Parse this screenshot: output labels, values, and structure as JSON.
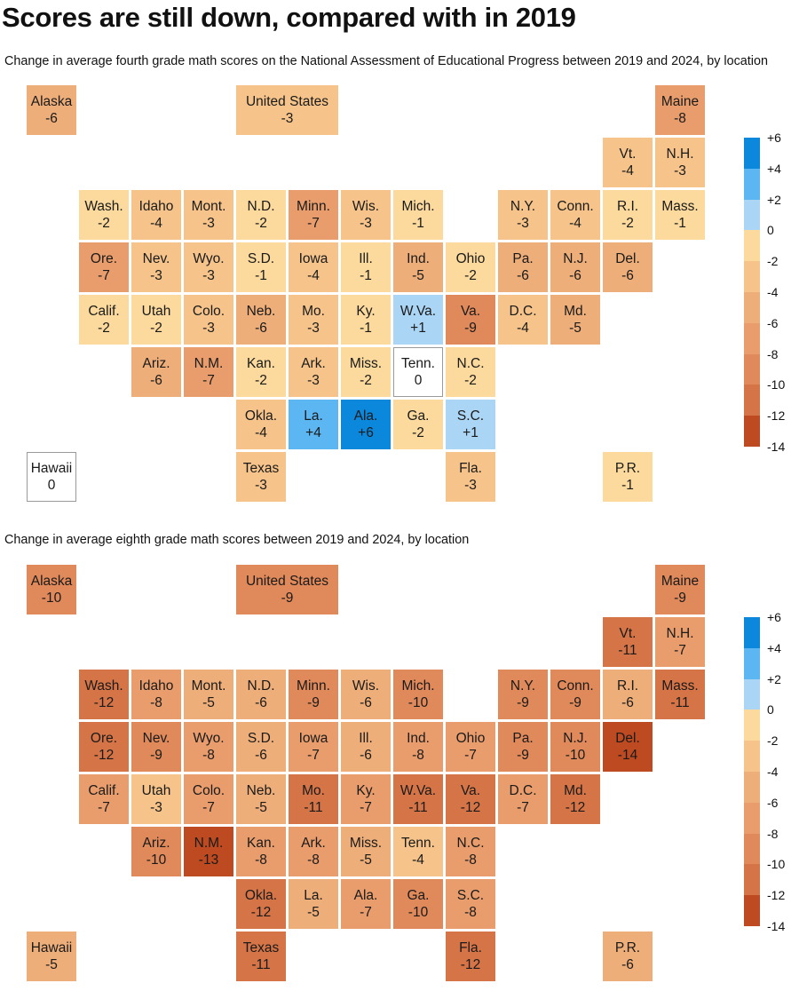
{
  "title": "Scores are still down, compared with in 2019",
  "maps": [
    {
      "subtitle": "Change in average fourth grade math scores on the National Assessment of Educational Progress between 2019 and 2024, by location",
      "tiles": [
        {
          "label": "Alaska",
          "value": -6
        },
        {
          "label": "United States",
          "value": -3
        },
        {
          "label": "Maine",
          "value": -8
        },
        {
          "label": "Vt.",
          "value": -4
        },
        {
          "label": "N.H.",
          "value": -3
        },
        {
          "label": "Wash.",
          "value": -2
        },
        {
          "label": "Idaho",
          "value": -4
        },
        {
          "label": "Mont.",
          "value": -3
        },
        {
          "label": "N.D.",
          "value": -2
        },
        {
          "label": "Minn.",
          "value": -7
        },
        {
          "label": "Wis.",
          "value": -3
        },
        {
          "label": "Mich.",
          "value": -1
        },
        {
          "label": "N.Y.",
          "value": -3
        },
        {
          "label": "Conn.",
          "value": -4
        },
        {
          "label": "R.I.",
          "value": -2
        },
        {
          "label": "Mass.",
          "value": -1
        },
        {
          "label": "Ore.",
          "value": -7
        },
        {
          "label": "Nev.",
          "value": -3
        },
        {
          "label": "Wyo.",
          "value": -3
        },
        {
          "label": "S.D.",
          "value": -1
        },
        {
          "label": "Iowa",
          "value": -4
        },
        {
          "label": "Ill.",
          "value": -1
        },
        {
          "label": "Ind.",
          "value": -5
        },
        {
          "label": "Ohio",
          "value": -2
        },
        {
          "label": "Pa.",
          "value": -6
        },
        {
          "label": "N.J.",
          "value": -6
        },
        {
          "label": "Del.",
          "value": -6
        },
        {
          "label": "Calif.",
          "value": -2
        },
        {
          "label": "Utah",
          "value": -2
        },
        {
          "label": "Colo.",
          "value": -3
        },
        {
          "label": "Neb.",
          "value": -6
        },
        {
          "label": "Mo.",
          "value": -3
        },
        {
          "label": "Ky.",
          "value": -1
        },
        {
          "label": "W.Va.",
          "value": 1
        },
        {
          "label": "Va.",
          "value": -9
        },
        {
          "label": "D.C.",
          "value": -4
        },
        {
          "label": "Md.",
          "value": -5
        },
        {
          "label": "Ariz.",
          "value": -6
        },
        {
          "label": "N.M.",
          "value": -7
        },
        {
          "label": "Kan.",
          "value": -2
        },
        {
          "label": "Ark.",
          "value": -3
        },
        {
          "label": "Miss.",
          "value": -2
        },
        {
          "label": "Tenn.",
          "value": 0
        },
        {
          "label": "N.C.",
          "value": -2
        },
        {
          "label": "Okla.",
          "value": -4
        },
        {
          "label": "La.",
          "value": 4
        },
        {
          "label": "Ala.",
          "value": 6
        },
        {
          "label": "Ga.",
          "value": -2
        },
        {
          "label": "S.C.",
          "value": 1
        },
        {
          "label": "Hawaii",
          "value": 0
        },
        {
          "label": "Texas",
          "value": -3
        },
        {
          "label": "Fla.",
          "value": -3
        },
        {
          "label": "P.R.",
          "value": -1
        }
      ]
    },
    {
      "subtitle": "Change in average eighth grade math scores between 2019 and 2024, by location",
      "tiles": [
        {
          "label": "Alaska",
          "value": -10
        },
        {
          "label": "United States",
          "value": -9
        },
        {
          "label": "Maine",
          "value": -9
        },
        {
          "label": "Vt.",
          "value": -11
        },
        {
          "label": "N.H.",
          "value": -7
        },
        {
          "label": "Wash.",
          "value": -12
        },
        {
          "label": "Idaho",
          "value": -8
        },
        {
          "label": "Mont.",
          "value": -5
        },
        {
          "label": "N.D.",
          "value": -6
        },
        {
          "label": "Minn.",
          "value": -9
        },
        {
          "label": "Wis.",
          "value": -6
        },
        {
          "label": "Mich.",
          "value": -10
        },
        {
          "label": "N.Y.",
          "value": -9
        },
        {
          "label": "Conn.",
          "value": -9
        },
        {
          "label": "R.I.",
          "value": -6
        },
        {
          "label": "Mass.",
          "value": -11
        },
        {
          "label": "Ore.",
          "value": -12
        },
        {
          "label": "Nev.",
          "value": -9
        },
        {
          "label": "Wyo.",
          "value": -8
        },
        {
          "label": "S.D.",
          "value": -6
        },
        {
          "label": "Iowa",
          "value": -7
        },
        {
          "label": "Ill.",
          "value": -6
        },
        {
          "label": "Ind.",
          "value": -8
        },
        {
          "label": "Ohio",
          "value": -7
        },
        {
          "label": "Pa.",
          "value": -9
        },
        {
          "label": "N.J.",
          "value": -10
        },
        {
          "label": "Del.",
          "value": -14
        },
        {
          "label": "Calif.",
          "value": -7
        },
        {
          "label": "Utah",
          "value": -3
        },
        {
          "label": "Colo.",
          "value": -7
        },
        {
          "label": "Neb.",
          "value": -5
        },
        {
          "label": "Mo.",
          "value": -11
        },
        {
          "label": "Ky.",
          "value": -7
        },
        {
          "label": "W.Va.",
          "value": -11
        },
        {
          "label": "Va.",
          "value": -12
        },
        {
          "label": "D.C.",
          "value": -7
        },
        {
          "label": "Md.",
          "value": -12
        },
        {
          "label": "Ariz.",
          "value": -10
        },
        {
          "label": "N.M.",
          "value": -13
        },
        {
          "label": "Kan.",
          "value": -8
        },
        {
          "label": "Ark.",
          "value": -8
        },
        {
          "label": "Miss.",
          "value": -5
        },
        {
          "label": "Tenn.",
          "value": -4
        },
        {
          "label": "N.C.",
          "value": -8
        },
        {
          "label": "Okla.",
          "value": -12
        },
        {
          "label": "La.",
          "value": -5
        },
        {
          "label": "Ala.",
          "value": -7
        },
        {
          "label": "Ga.",
          "value": -10
        },
        {
          "label": "S.C.",
          "value": -8
        },
        {
          "label": "Hawaii",
          "value": -5
        },
        {
          "label": "Texas",
          "value": -11
        },
        {
          "label": "Fla.",
          "value": -12
        },
        {
          "label": "P.R.",
          "value": -6
        }
      ]
    }
  ],
  "legend": {
    "ticks": [
      "+6",
      "+4",
      "+2",
      "0",
      "-2",
      "-4",
      "-6",
      "-8",
      "-10",
      "-12",
      "-14"
    ],
    "colors": [
      "#0b87dc",
      "#5bb6f2",
      "#abd5f5",
      "#fcd99c",
      "#f6c48a",
      "#eeae79",
      "#e99d6c",
      "#e0895a",
      "#d57447",
      "#c95f34",
      "#bd4a21"
    ]
  },
  "chart_data": [
    {
      "type": "heatmap",
      "title": "Scores are still down, compared with in 2019",
      "subtitle": "Change in average fourth grade math scores on the National Assessment of Educational Progress between 2019 and 2024, by location",
      "categories": [
        "Alaska",
        "United States",
        "Maine",
        "Vt.",
        "N.H.",
        "Wash.",
        "Idaho",
        "Mont.",
        "N.D.",
        "Minn.",
        "Wis.",
        "Mich.",
        "N.Y.",
        "Conn.",
        "R.I.",
        "Mass.",
        "Ore.",
        "Nev.",
        "Wyo.",
        "S.D.",
        "Iowa",
        "Ill.",
        "Ind.",
        "Ohio",
        "Pa.",
        "N.J.",
        "Del.",
        "Calif.",
        "Utah",
        "Colo.",
        "Neb.",
        "Mo.",
        "Ky.",
        "W.Va.",
        "Va.",
        "D.C.",
        "Md.",
        "Ariz.",
        "N.M.",
        "Kan.",
        "Ark.",
        "Miss.",
        "Tenn.",
        "N.C.",
        "Okla.",
        "La.",
        "Ala.",
        "Ga.",
        "S.C.",
        "Hawaii",
        "Texas",
        "Fla.",
        "P.R."
      ],
      "values": [
        -6,
        -3,
        -8,
        -4,
        -3,
        -2,
        -4,
        -3,
        -2,
        -7,
        -3,
        -1,
        -3,
        -4,
        -2,
        -1,
        -7,
        -3,
        -3,
        -1,
        -4,
        -1,
        -5,
        -2,
        -6,
        -6,
        -6,
        -2,
        -2,
        -3,
        -6,
        -3,
        -1,
        1,
        -9,
        -4,
        -5,
        -6,
        -7,
        -2,
        -3,
        -2,
        0,
        -2,
        -4,
        4,
        6,
        -2,
        1,
        0,
        -3,
        -3,
        -1
      ],
      "color_scale_range": [
        -14,
        6
      ],
      "legend": "right"
    },
    {
      "type": "heatmap",
      "subtitle": "Change in average eighth grade math scores between 2019 and 2024, by location",
      "categories": [
        "Alaska",
        "United States",
        "Maine",
        "Vt.",
        "N.H.",
        "Wash.",
        "Idaho",
        "Mont.",
        "N.D.",
        "Minn.",
        "Wis.",
        "Mich.",
        "N.Y.",
        "Conn.",
        "R.I.",
        "Mass.",
        "Ore.",
        "Nev.",
        "Wyo.",
        "S.D.",
        "Iowa",
        "Ill.",
        "Ind.",
        "Ohio",
        "Pa.",
        "N.J.",
        "Del.",
        "Calif.",
        "Utah",
        "Colo.",
        "Neb.",
        "Mo.",
        "Ky.",
        "W.Va.",
        "Va.",
        "D.C.",
        "Md.",
        "Ariz.",
        "N.M.",
        "Kan.",
        "Ark.",
        "Miss.",
        "Tenn.",
        "N.C.",
        "Okla.",
        "La.",
        "Ala.",
        "Ga.",
        "S.C.",
        "Hawaii",
        "Texas",
        "Fla.",
        "P.R."
      ],
      "values": [
        -10,
        -9,
        -9,
        -11,
        -7,
        -12,
        -8,
        -5,
        -6,
        -9,
        -6,
        -10,
        -9,
        -9,
        -6,
        -11,
        -12,
        -9,
        -8,
        -6,
        -7,
        -6,
        -8,
        -7,
        -9,
        -10,
        -14,
        -7,
        -3,
        -7,
        -5,
        -11,
        -7,
        -11,
        -12,
        -7,
        -12,
        -10,
        -13,
        -8,
        -8,
        -5,
        -4,
        -8,
        -12,
        -5,
        -7,
        -10,
        -8,
        -5,
        -11,
        -12,
        -6
      ],
      "color_scale_range": [
        -14,
        6
      ],
      "legend": "right"
    }
  ]
}
